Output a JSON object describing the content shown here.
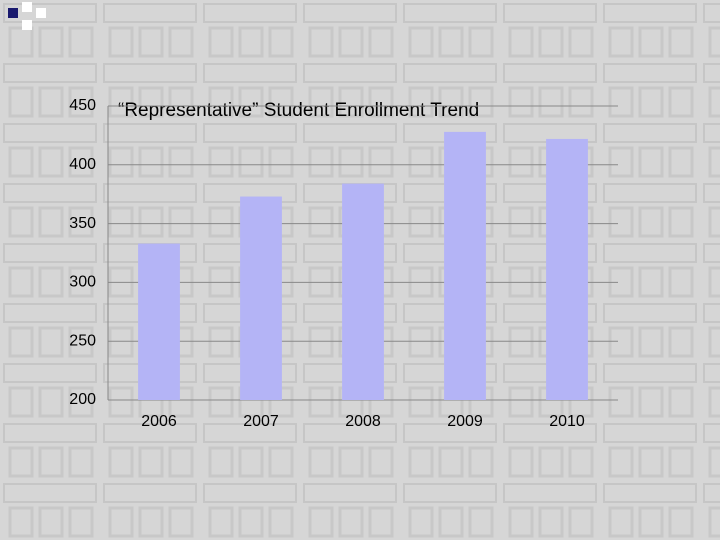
{
  "chart_data": {
    "type": "bar",
    "title": "“Representative” Student Enrollment Trend",
    "categories": [
      "2006",
      "2007",
      "2008",
      "2009",
      "2010"
    ],
    "values": [
      333,
      373,
      384,
      428,
      422
    ],
    "color": "#b4b4f6",
    "ylim": [
      200,
      450
    ],
    "yticks": [
      200,
      250,
      300,
      350,
      400,
      450
    ],
    "grid": true
  }
}
